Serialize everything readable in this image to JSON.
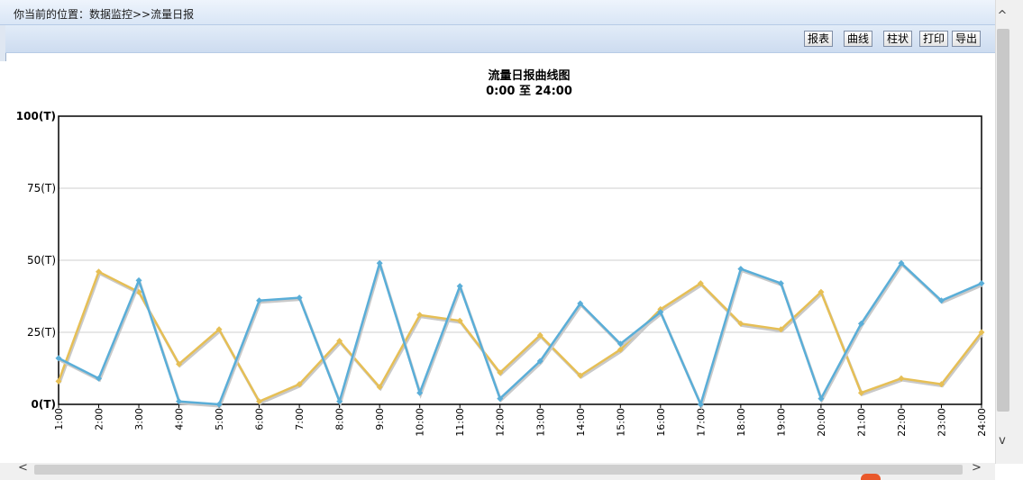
{
  "breadcrumb": {
    "text": "你当前的位置：数据监控>>流量日报"
  },
  "toolbar": {
    "buttons": [
      {
        "label": "报表"
      },
      {
        "label": "曲线"
      },
      {
        "label": "柱状"
      },
      {
        "label": "打印"
      },
      {
        "label": "导出"
      }
    ]
  },
  "scrollbar": {
    "up_arrow": "^",
    "down_arrow": "v",
    "left_arrow": "<",
    "right_arrow": ">"
  },
  "chart_data": {
    "type": "line",
    "title": "流量日报曲线图",
    "subtitle": "0:00 至 24:00",
    "categories": [
      "1:00",
      "2:00",
      "3:00",
      "4:00",
      "5:00",
      "6:00",
      "7:00",
      "8:00",
      "9:00",
      "10:00",
      "11:00",
      "12:00",
      "13:00",
      "14:00",
      "15:00",
      "16:00",
      "17:00",
      "18:00",
      "19:00",
      "20:00",
      "21:00",
      "22:00",
      "23:00",
      "24:00"
    ],
    "y_tick_labels": [
      "0(T)",
      "25(T)",
      "50(T)",
      "75(T)",
      "100(T)"
    ],
    "y_ticks": [
      0,
      25,
      50,
      75,
      100
    ],
    "ylim": [
      0,
      100
    ],
    "grid": true,
    "legend": "none",
    "series": [
      {
        "color": "#e6bf55",
        "values": [
          8,
          46,
          39,
          14,
          26,
          1,
          7,
          22,
          6,
          31,
          29,
          11,
          24,
          10,
          19,
          33,
          42,
          28,
          26,
          39,
          4,
          9,
          7,
          25
        ]
      },
      {
        "color": "#5aaed8",
        "values": [
          16,
          9,
          43,
          1,
          0,
          36,
          37,
          1,
          49,
          4,
          41,
          2,
          15,
          35,
          21,
          32,
          0,
          47,
          42,
          2,
          28,
          49,
          36,
          42
        ]
      }
    ]
  }
}
